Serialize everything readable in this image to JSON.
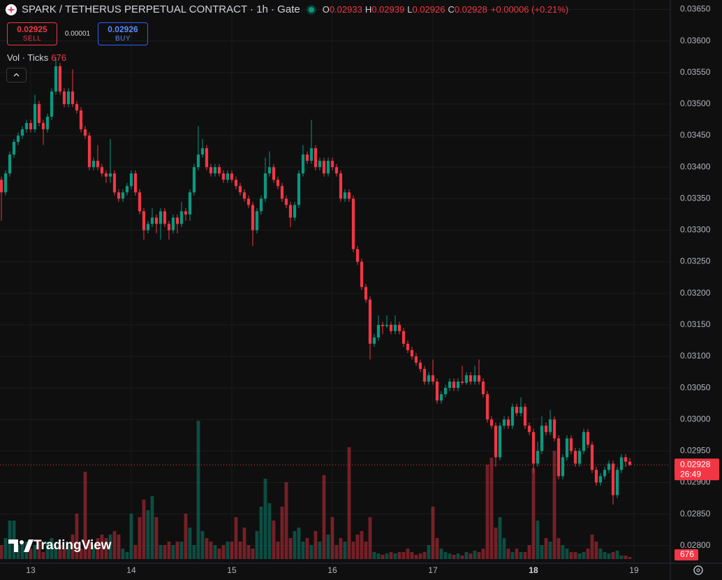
{
  "chart_data": {
    "type": "candlestick",
    "title": "SPARK / TETHERUS PERPETUAL CONTRACT · 1h · Gate",
    "ohlc_labels": [
      "O",
      "H",
      "L",
      "C"
    ],
    "change": "+0.00006 (+0.21%)",
    "trade": {
      "sell": 0.02925,
      "sell_label": "SELL",
      "spread": 1e-05,
      "buy": 0.02926,
      "buy_label": "BUY"
    },
    "volume_title": "Vol · Ticks",
    "countdown": "26:49",
    "watermark": "TradingView",
    "up_color": "#089981",
    "down_color": "#f23645",
    "grid": true,
    "ylim": [
      0.02772,
      0.03665
    ],
    "xlim": [
      -0.33,
      159.67
    ],
    "yticks": [
      {
        "value": 0.0365,
        "label": "0.03650"
      },
      {
        "value": 0.036,
        "label": "0.03600"
      },
      {
        "value": 0.0355,
        "label": "0.03550"
      },
      {
        "value": 0.035,
        "label": "0.03500"
      },
      {
        "value": 0.0345,
        "label": "0.03450"
      },
      {
        "value": 0.034,
        "label": "0.03400"
      },
      {
        "value": 0.0335,
        "label": "0.03350"
      },
      {
        "value": 0.033,
        "label": "0.03300"
      },
      {
        "value": 0.0325,
        "label": "0.03250"
      },
      {
        "value": 0.032,
        "label": "0.03200"
      },
      {
        "value": 0.0315,
        "label": "0.03150"
      },
      {
        "value": 0.031,
        "label": "0.03100"
      },
      {
        "value": 0.0305,
        "label": "0.03050"
      },
      {
        "value": 0.03,
        "label": "0.03000"
      },
      {
        "value": 0.0295,
        "label": "0.02950"
      },
      {
        "value": 0.029,
        "label": "0.02900"
      },
      {
        "value": 0.0285,
        "label": "0.02850"
      },
      {
        "value": 0.028,
        "label": "0.02800"
      }
    ],
    "xticks": [
      {
        "value": 7,
        "label": "13"
      },
      {
        "value": 31,
        "label": "14"
      },
      {
        "value": 55,
        "label": "15"
      },
      {
        "value": 79,
        "label": "16"
      },
      {
        "value": 103,
        "label": "17"
      },
      {
        "value": 127,
        "label": "18"
      },
      {
        "value": 151,
        "label": "19"
      }
    ],
    "ohlc": [
      [
        0.0338,
        0.03385,
        0.03315,
        0.0336
      ],
      [
        0.0336,
        0.03395,
        0.03355,
        0.0339
      ],
      [
        0.0339,
        0.03425,
        0.03385,
        0.0342
      ],
      [
        0.0342,
        0.03445,
        0.03415,
        0.0344
      ],
      [
        0.0344,
        0.03455,
        0.03435,
        0.0345
      ],
      [
        0.0345,
        0.03465,
        0.03445,
        0.0346
      ],
      [
        0.0346,
        0.03475,
        0.03455,
        0.0347
      ],
      [
        0.0347,
        0.03475,
        0.03455,
        0.0346
      ],
      [
        0.0346,
        0.03515,
        0.03455,
        0.035
      ],
      [
        0.035,
        0.03505,
        0.03465,
        0.0347
      ],
      [
        0.0347,
        0.03475,
        0.03435,
        0.0346
      ],
      [
        0.0346,
        0.03485,
        0.03455,
        0.0348
      ],
      [
        0.0348,
        0.03525,
        0.03475,
        0.0352
      ],
      [
        0.0352,
        0.03575,
        0.03515,
        0.0356
      ],
      [
        0.0356,
        0.03565,
        0.03515,
        0.0352
      ],
      [
        0.0352,
        0.03525,
        0.03495,
        0.035
      ],
      [
        0.035,
        0.03525,
        0.03495,
        0.0352
      ],
      [
        0.0352,
        0.03555,
        0.03495,
        0.035
      ],
      [
        0.035,
        0.03505,
        0.03485,
        0.0349
      ],
      [
        0.0349,
        0.03495,
        0.03455,
        0.0346
      ],
      [
        0.0346,
        0.03465,
        0.03445,
        0.0345
      ],
      [
        0.0345,
        0.03455,
        0.03395,
        0.034
      ],
      [
        0.034,
        0.03415,
        0.03395,
        0.0341
      ],
      [
        0.0341,
        0.03435,
        0.03395,
        0.034
      ],
      [
        0.034,
        0.03405,
        0.03385,
        0.0339
      ],
      [
        0.0339,
        0.03395,
        0.03375,
        0.03385
      ],
      [
        0.03385,
        0.03445,
        0.03375,
        0.0339
      ],
      [
        0.0339,
        0.03395,
        0.03355,
        0.0336
      ],
      [
        0.0336,
        0.03365,
        0.03345,
        0.0335
      ],
      [
        0.0335,
        0.03365,
        0.03345,
        0.0336
      ],
      [
        0.0336,
        0.03375,
        0.03355,
        0.0337
      ],
      [
        0.0337,
        0.03395,
        0.03365,
        0.0339
      ],
      [
        0.0339,
        0.03395,
        0.03355,
        0.0336
      ],
      [
        0.0336,
        0.03365,
        0.03325,
        0.0333
      ],
      [
        0.0333,
        0.03335,
        0.03285,
        0.033
      ],
      [
        0.033,
        0.03315,
        0.03295,
        0.0331
      ],
      [
        0.0331,
        0.03335,
        0.03305,
        0.0332
      ],
      [
        0.0332,
        0.03325,
        0.03295,
        0.0331
      ],
      [
        0.0331,
        0.03335,
        0.03285,
        0.0333
      ],
      [
        0.0333,
        0.03335,
        0.03305,
        0.0331
      ],
      [
        0.0331,
        0.03315,
        0.03285,
        0.033
      ],
      [
        0.033,
        0.03325,
        0.03295,
        0.0332
      ],
      [
        0.0332,
        0.03325,
        0.03295,
        0.0331
      ],
      [
        0.0331,
        0.03345,
        0.03305,
        0.0333
      ],
      [
        0.0333,
        0.03335,
        0.03315,
        0.03325
      ],
      [
        0.03325,
        0.03365,
        0.03315,
        0.0336
      ],
      [
        0.0336,
        0.03405,
        0.03355,
        0.034
      ],
      [
        0.034,
        0.03465,
        0.03395,
        0.0342
      ],
      [
        0.0342,
        0.03445,
        0.03415,
        0.0343
      ],
      [
        0.0343,
        0.03435,
        0.03395,
        0.034
      ],
      [
        0.034,
        0.03405,
        0.03385,
        0.0339
      ],
      [
        0.0339,
        0.03405,
        0.03385,
        0.034
      ],
      [
        0.034,
        0.03405,
        0.03385,
        0.0339
      ],
      [
        0.0339,
        0.03395,
        0.03375,
        0.0338
      ],
      [
        0.0338,
        0.03395,
        0.03375,
        0.0339
      ],
      [
        0.0339,
        0.03395,
        0.03375,
        0.0338
      ],
      [
        0.0338,
        0.03385,
        0.03365,
        0.0337
      ],
      [
        0.0337,
        0.03375,
        0.03355,
        0.0336
      ],
      [
        0.0336,
        0.03365,
        0.03345,
        0.0335
      ],
      [
        0.0335,
        0.03355,
        0.03335,
        0.0334
      ],
      [
        0.0334,
        0.03345,
        0.03275,
        0.033
      ],
      [
        0.033,
        0.03335,
        0.03295,
        0.0333
      ],
      [
        0.0333,
        0.03355,
        0.03325,
        0.0335
      ],
      [
        0.0335,
        0.03415,
        0.03345,
        0.0339
      ],
      [
        0.0339,
        0.03425,
        0.03385,
        0.034
      ],
      [
        0.034,
        0.03405,
        0.03375,
        0.0338
      ],
      [
        0.0338,
        0.03385,
        0.03365,
        0.0337
      ],
      [
        0.0337,
        0.03375,
        0.03345,
        0.0335
      ],
      [
        0.0335,
        0.03355,
        0.03335,
        0.0334
      ],
      [
        0.0334,
        0.03345,
        0.03305,
        0.0332
      ],
      [
        0.0332,
        0.03345,
        0.03315,
        0.0334
      ],
      [
        0.0334,
        0.03395,
        0.03335,
        0.0339
      ],
      [
        0.0339,
        0.03435,
        0.03385,
        0.0342
      ],
      [
        0.0342,
        0.03425,
        0.03405,
        0.0341
      ],
      [
        0.0341,
        0.03475,
        0.03405,
        0.0343
      ],
      [
        0.0343,
        0.03435,
        0.03395,
        0.034
      ],
      [
        0.034,
        0.03415,
        0.03395,
        0.0341
      ],
      [
        0.0341,
        0.03415,
        0.03385,
        0.0339
      ],
      [
        0.0339,
        0.03415,
        0.03385,
        0.0341
      ],
      [
        0.0341,
        0.03415,
        0.03395,
        0.034
      ],
      [
        0.034,
        0.03405,
        0.03385,
        0.0339
      ],
      [
        0.0339,
        0.03395,
        0.03345,
        0.0335
      ],
      [
        0.0335,
        0.03365,
        0.03345,
        0.0336
      ],
      [
        0.0336,
        0.03365,
        0.03345,
        0.0335
      ],
      [
        0.0335,
        0.03355,
        0.03265,
        0.0327
      ],
      [
        0.0327,
        0.03275,
        0.03245,
        0.0325
      ],
      [
        0.0325,
        0.03255,
        0.03205,
        0.0321
      ],
      [
        0.0321,
        0.03215,
        0.03185,
        0.0319
      ],
      [
        0.0319,
        0.03195,
        0.03095,
        0.0312
      ],
      [
        0.0312,
        0.03135,
        0.03115,
        0.0313
      ],
      [
        0.0313,
        0.03165,
        0.03125,
        0.0315
      ],
      [
        0.0315,
        0.03155,
        0.03135,
        0.03148
      ],
      [
        0.03148,
        0.03165,
        0.03145,
        0.0315
      ],
      [
        0.0315,
        0.03155,
        0.03135,
        0.0314
      ],
      [
        0.0314,
        0.03165,
        0.03135,
        0.0315
      ],
      [
        0.0315,
        0.03155,
        0.03135,
        0.0314
      ],
      [
        0.0314,
        0.03145,
        0.03115,
        0.0312
      ],
      [
        0.0312,
        0.03125,
        0.03105,
        0.0311
      ],
      [
        0.0311,
        0.03115,
        0.03095,
        0.031
      ],
      [
        0.031,
        0.03105,
        0.03085,
        0.0309
      ],
      [
        0.0309,
        0.03095,
        0.03075,
        0.0308
      ],
      [
        0.0308,
        0.03085,
        0.03055,
        0.0306
      ],
      [
        0.0306,
        0.03075,
        0.03055,
        0.0307
      ],
      [
        0.0307,
        0.03095,
        0.03055,
        0.0306
      ],
      [
        0.0306,
        0.03065,
        0.03025,
        0.0303
      ],
      [
        0.0303,
        0.03045,
        0.03025,
        0.0304
      ],
      [
        0.0304,
        0.03055,
        0.03035,
        0.0305
      ],
      [
        0.0305,
        0.03065,
        0.03045,
        0.0306
      ],
      [
        0.0306,
        0.03065,
        0.03045,
        0.0305
      ],
      [
        0.0305,
        0.03065,
        0.03045,
        0.0306
      ],
      [
        0.0306,
        0.03085,
        0.03055,
        0.03058
      ],
      [
        0.03058,
        0.03075,
        0.03055,
        0.0307
      ],
      [
        0.0307,
        0.03075,
        0.03055,
        0.0306
      ],
      [
        0.0306,
        0.03085,
        0.03055,
        0.0307
      ],
      [
        0.0307,
        0.03095,
        0.03055,
        0.0306
      ],
      [
        0.0306,
        0.03065,
        0.03035,
        0.0304
      ],
      [
        0.0304,
        0.03045,
        0.02995,
        0.03
      ],
      [
        0.03,
        0.03005,
        0.02985,
        0.0299
      ],
      [
        0.0299,
        0.02995,
        0.02925,
        0.0294
      ],
      [
        0.0294,
        0.02995,
        0.02935,
        0.0299
      ],
      [
        0.0299,
        0.03005,
        0.02985,
        0.03
      ],
      [
        0.03,
        0.03005,
        0.02985,
        0.0299
      ],
      [
        0.0299,
        0.03025,
        0.02985,
        0.0302
      ],
      [
        0.0302,
        0.03025,
        0.03005,
        0.0301
      ],
      [
        0.0301,
        0.03035,
        0.03005,
        0.0302
      ],
      [
        0.0302,
        0.03025,
        0.02985,
        0.0299
      ],
      [
        0.0299,
        0.02995,
        0.02975,
        0.0298
      ],
      [
        0.0298,
        0.02985,
        0.02915,
        0.0293
      ],
      [
        0.0293,
        0.02965,
        0.02925,
        0.0295
      ],
      [
        0.0295,
        0.03005,
        0.02945,
        0.0299
      ],
      [
        0.0299,
        0.02995,
        0.02975,
        0.0298
      ],
      [
        0.0298,
        0.03015,
        0.02975,
        0.03
      ],
      [
        0.03,
        0.03005,
        0.02965,
        0.0297
      ],
      [
        0.0297,
        0.02975,
        0.02905,
        0.0291
      ],
      [
        0.0291,
        0.02945,
        0.02905,
        0.0294
      ],
      [
        0.0294,
        0.02975,
        0.02935,
        0.0297
      ],
      [
        0.0297,
        0.02975,
        0.02945,
        0.0295
      ],
      [
        0.0295,
        0.02955,
        0.02925,
        0.0293
      ],
      [
        0.0293,
        0.02955,
        0.02925,
        0.0295
      ],
      [
        0.0295,
        0.02985,
        0.02945,
        0.0298
      ],
      [
        0.0298,
        0.02985,
        0.02955,
        0.0296
      ],
      [
        0.0296,
        0.02965,
        0.02915,
        0.0292
      ],
      [
        0.0292,
        0.02925,
        0.02895,
        0.029
      ],
      [
        0.029,
        0.02915,
        0.02895,
        0.0291
      ],
      [
        0.0291,
        0.02925,
        0.02905,
        0.0292
      ],
      [
        0.0292,
        0.02935,
        0.02915,
        0.0293
      ],
      [
        0.0293,
        0.02935,
        0.02865,
        0.0288
      ],
      [
        0.0288,
        0.02925,
        0.02875,
        0.0292
      ],
      [
        0.0292,
        0.02945,
        0.02915,
        0.0294
      ],
      [
        0.0294,
        0.02945,
        0.02925,
        0.02933
      ],
      [
        0.02933,
        0.02939,
        0.02926,
        0.02928
      ]
    ],
    "volume": [
      4500,
      6750,
      12375,
      12375,
      4500,
      5625,
      5625,
      3375,
      4500,
      5625,
      2250,
      5625,
      6750,
      4500,
      4500,
      3375,
      4500,
      7875,
      14625,
      3375,
      28125,
      5625,
      4500,
      6750,
      7875,
      6750,
      7875,
      9000,
      7875,
      3375,
      2250,
      14625,
      4500,
      13500,
      19125,
      15750,
      20250,
      13500,
      4500,
      4500,
      5625,
      4500,
      5625,
      5625,
      14625,
      10125,
      4500,
      44550,
      9000,
      6750,
      5625,
      4500,
      3375,
      4500,
      5625,
      5625,
      13500,
      5625,
      10125,
      4500,
      3375,
      9000,
      16875,
      25875,
      18000,
      12375,
      5625,
      16875,
      24750,
      6750,
      9000,
      10125,
      5625,
      6750,
      4500,
      9000,
      5625,
      27000,
      7875,
      13500,
      4500,
      6750,
      5625,
      36000,
      5625,
      7875,
      9000,
      5625,
      13500,
      2250,
      1800,
      1350,
      1800,
      2250,
      1800,
      2250,
      2250,
      3375,
      2250,
      1350,
      1800,
      2250,
      4500,
      16875,
      6750,
      3375,
      2250,
      1800,
      1350,
      1800,
      1125,
      2250,
      1800,
      2700,
      2250,
      3375,
      30375,
      32625,
      10125,
      13500,
      6750,
      3375,
      2250,
      3375,
      2250,
      2250,
      4500,
      29250,
      12375,
      4500,
      6750,
      5625,
      34875,
      6750,
      4500,
      3375,
      2250,
      2250,
      1800,
      2250,
      3375,
      7875,
      5625,
      3375,
      2250,
      1800,
      2250,
      2700,
      1125,
      1125,
      676
    ]
  }
}
